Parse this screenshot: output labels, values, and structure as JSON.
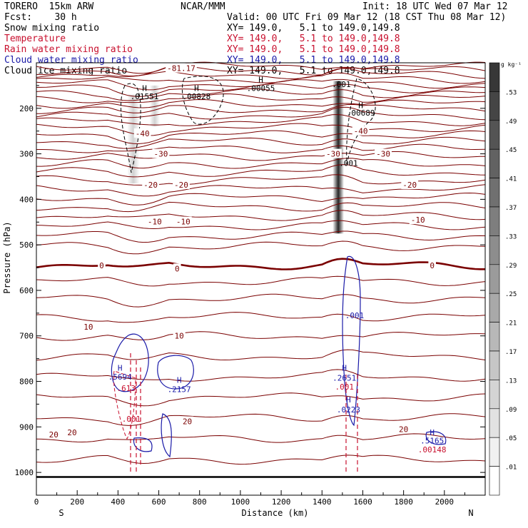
{
  "header": {
    "model": "TORERO  15km ARW",
    "center": "NCAR/MMM",
    "init": "Init: 18 UTC Wed 07 Mar 12",
    "fcst": "Fcst:    30 h",
    "valid": "Valid: 00 UTC Fri 09 Mar 12 (18 CST Thu 08 Mar 12)"
  },
  "fields": [
    {
      "name": "Snow mixing ratio",
      "xy": "XY= 149.0,   5.1 to 149.0,149.8",
      "color": "#000000"
    },
    {
      "name": "Temperature",
      "xy": "XY= 149.0,   5.1 to 149.0,149.8",
      "color": "#c8102e"
    },
    {
      "name": "Rain water mixing ratio",
      "xy": "XY= 149.0,   5.1 to 149.0,149.8",
      "color": "#c8102e"
    },
    {
      "name": "Cloud water mixing ratio",
      "xy": "XY= 149.0,   5.1 to 149.0,149.8",
      "color": "#1a1aa8"
    },
    {
      "name": "Cloud ice mixing ratio",
      "xy": "XY= 149.0,   5.1 to 149.0,149.8",
      "color": "#000000"
    }
  ],
  "chart_data": {
    "type": "cross-section",
    "xlabel": "Distance (km)",
    "ylabel": "Pressure (hPa)",
    "x_range": [
      0,
      2200
    ],
    "y_range": [
      1050,
      100
    ],
    "x_ticks": [
      0,
      200,
      400,
      600,
      800,
      1000,
      1200,
      1400,
      1600,
      1800,
      2000
    ],
    "y_ticks": [
      200,
      300,
      400,
      500,
      600,
      700,
      800,
      900,
      1000
    ],
    "x_ends": {
      "left": "S",
      "right": "N"
    },
    "colorbar": {
      "unit": "g kg⁻¹",
      "labels": [
        ".53",
        ".49",
        ".45",
        ".41",
        ".37",
        ".33",
        ".29",
        ".25",
        ".21",
        ".17",
        ".13",
        ".09",
        ".05",
        ".01"
      ]
    },
    "temperature_label_list": [
      "-81.17",
      "-40",
      "-40",
      "-30",
      "-30",
      "-30",
      "-20",
      "-20",
      "-20",
      "-10",
      "-10",
      "-10",
      "0",
      "0",
      "0",
      "10",
      "10",
      "20",
      "20",
      "20",
      "20"
    ],
    "temperature_labels": [
      {
        "text": "-81.17",
        "x": 710,
        "p": 112
      },
      {
        "text": "-40",
        "x": 520,
        "p": 255
      },
      {
        "text": "-40",
        "x": 1590,
        "p": 250
      },
      {
        "text": "-30",
        "x": 610,
        "p": 300
      },
      {
        "text": "-30",
        "x": 1455,
        "p": 300
      },
      {
        "text": "-30",
        "x": 1700,
        "p": 300
      },
      {
        "text": "-20",
        "x": 560,
        "p": 368
      },
      {
        "text": "-20",
        "x": 710,
        "p": 368
      },
      {
        "text": "-20",
        "x": 1830,
        "p": 368
      },
      {
        "text": "-10",
        "x": 580,
        "p": 449
      },
      {
        "text": "-10",
        "x": 720,
        "p": 449
      },
      {
        "text": "-10",
        "x": 1870,
        "p": 445
      },
      {
        "text": "0",
        "x": 320,
        "p": 545
      },
      {
        "text": "0",
        "x": 690,
        "p": 552
      },
      {
        "text": "0",
        "x": 1940,
        "p": 545
      },
      {
        "text": "10",
        "x": 255,
        "p": 680
      },
      {
        "text": "10",
        "x": 700,
        "p": 700
      },
      {
        "text": "20",
        "x": 85,
        "p": 917
      },
      {
        "text": "20",
        "x": 175,
        "p": 912
      },
      {
        "text": "20",
        "x": 740,
        "p": 888
      },
      {
        "text": "20",
        "x": 1800,
        "p": 905
      }
    ],
    "maxima_list": [
      ".01551",
      ".00828",
      ".00055",
      ".001",
      ".00689",
      ".001",
      ".001",
      ".5694",
      ".613",
      ".001",
      ".2157",
      ".2651",
      ".001",
      ".0223",
      ".5165",
      ".00148"
    ],
    "maxima": [
      {
        "text": ".01551",
        "x": 530,
        "p": 174,
        "h_p": 156,
        "color": "#000000"
      },
      {
        "text": ".00828",
        "x": 785,
        "p": 174,
        "h_p": 156,
        "color": "#000000"
      },
      {
        "text": ".00055",
        "x": 1100,
        "p": 156,
        "h_p": 137,
        "color": "#000000"
      },
      {
        "text": ".001",
        "x": 1495,
        "p": 147,
        "h_p": 147,
        "color": "#000000"
      },
      {
        "text": ".00689",
        "x": 1590,
        "p": 210,
        "h_p": 193,
        "color": "#000000"
      },
      {
        "text": ".001",
        "x": 1530,
        "p": 320,
        "h_p": 320,
        "color": "#000000"
      },
      {
        "text": ".001",
        "x": 1560,
        "p": 655,
        "h_p": 655,
        "color": "#1a1aa8"
      },
      {
        "text": ".5694",
        "x": 410,
        "p": 790,
        "h_p": 770,
        "color": "#1a1aa8"
      },
      {
        "text": ".613",
        "x": 440,
        "p": 815,
        "h_p": 815,
        "color": "#c8102e"
      },
      {
        "text": ".001",
        "x": 465,
        "p": 882,
        "h_p": 882,
        "color": "#c8102e"
      },
      {
        "text": ".2157",
        "x": 700,
        "p": 817,
        "h_p": 797,
        "color": "#1a1aa8"
      },
      {
        "text": ".2651",
        "x": 1510,
        "p": 792,
        "h_p": 770,
        "color": "#1a1aa8"
      },
      {
        "text": ".001",
        "x": 1510,
        "p": 812,
        "h_p": 812,
        "color": "#c8102e"
      },
      {
        "text": ".0223",
        "x": 1530,
        "p": 862,
        "h_p": 840,
        "color": "#1a1aa8"
      },
      {
        "text": ".5165",
        "x": 1940,
        "p": 930,
        "h_p": 912,
        "color": "#1a1aa8"
      },
      {
        "text": ".00148",
        "x": 1940,
        "p": 950,
        "h_p": 950,
        "color": "#c8102e"
      }
    ]
  }
}
